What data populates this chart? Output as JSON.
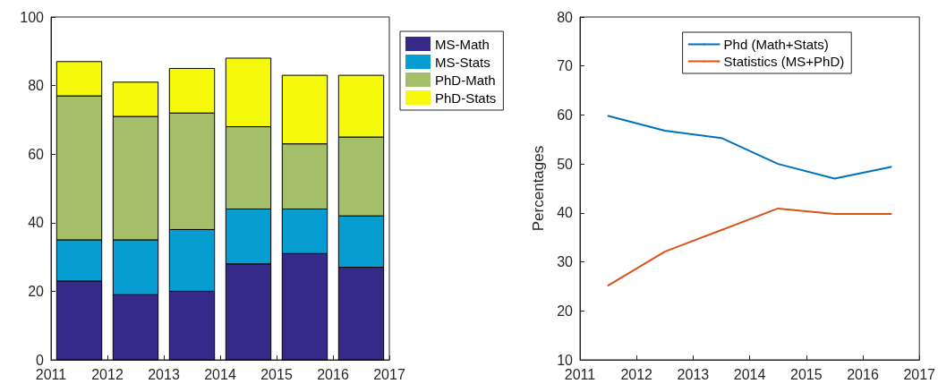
{
  "chart_data": [
    {
      "type": "bar",
      "stacked": true,
      "x": [
        2011.5,
        2012.5,
        2013.5,
        2014.5,
        2015.5,
        2016.5
      ],
      "xlim": [
        2011,
        2017
      ],
      "xticks": [
        2011,
        2012,
        2013,
        2014,
        2015,
        2016,
        2017
      ],
      "ylim": [
        0,
        100
      ],
      "yticks": [
        0,
        20,
        40,
        60,
        80,
        100
      ],
      "grid": false,
      "legend": "right",
      "series": [
        {
          "name": "MS-Math",
          "color": "#352a87",
          "values": [
            23,
            19,
            20,
            28,
            31,
            27
          ]
        },
        {
          "name": "MS-Stats",
          "color": "#089dd0",
          "values": [
            12,
            16,
            18,
            16,
            13,
            15
          ]
        },
        {
          "name": "PhD-Math",
          "color": "#a5be6a",
          "values": [
            42,
            36,
            34,
            24,
            19,
            23
          ]
        },
        {
          "name": "PhD-Stats",
          "color": "#f5f90c",
          "values": [
            10,
            10,
            13,
            20,
            20,
            18
          ]
        }
      ]
    },
    {
      "type": "line",
      "x": [
        2011.5,
        2012.5,
        2013.5,
        2014.5,
        2015.5,
        2016.5
      ],
      "xlim": [
        2011,
        2017
      ],
      "xticks": [
        2011,
        2012,
        2013,
        2014,
        2015,
        2016,
        2017
      ],
      "ylim": [
        10,
        80
      ],
      "yticks": [
        10,
        20,
        30,
        40,
        50,
        60,
        70,
        80
      ],
      "ylabel": "Percentages",
      "grid": false,
      "legend": "top",
      "marker": "none",
      "line_style": "solid",
      "series": [
        {
          "name": "Phd (Math+Stats)",
          "color": "#0072bd",
          "values": [
            59.8,
            56.8,
            55.3,
            50.0,
            47.0,
            49.4
          ]
        },
        {
          "name": "Statistics (MS+PhD)",
          "color": "#d95319",
          "values": [
            25.2,
            32.1,
            36.5,
            40.9,
            39.8,
            39.8
          ]
        }
      ]
    }
  ]
}
